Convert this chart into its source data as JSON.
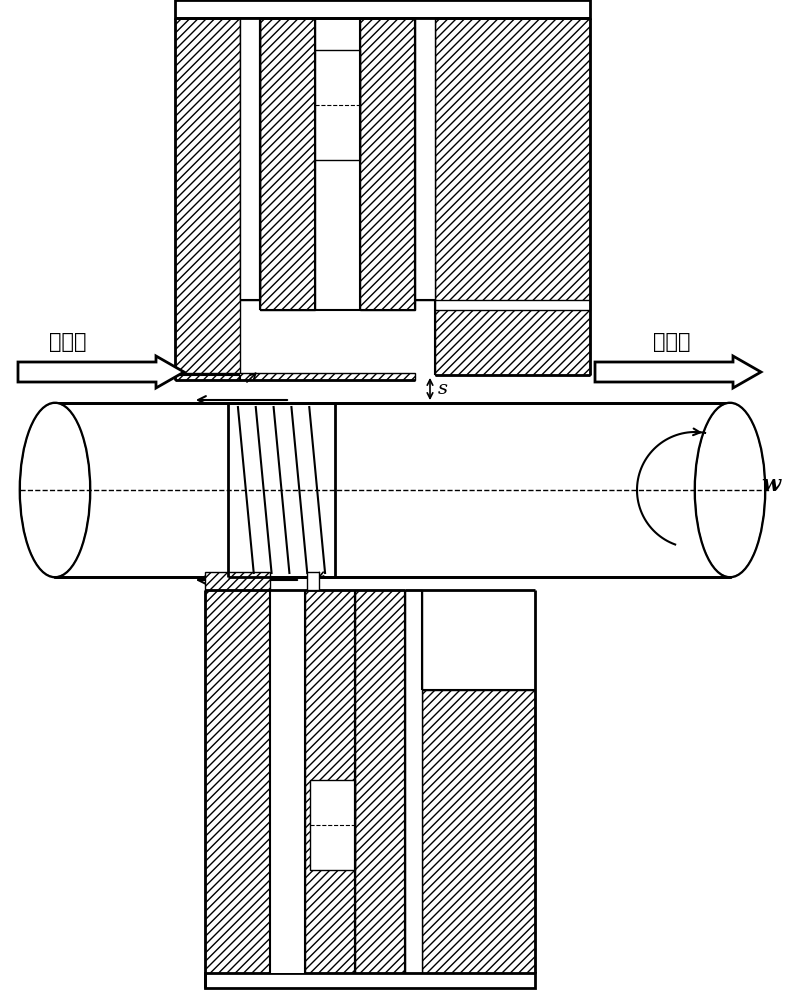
{
  "bg_color": "#ffffff",
  "lc": "#000000",
  "fig_width": 7.92,
  "fig_height": 10.0,
  "label_gaoya": "高压侧",
  "label_diya": "低压侧",
  "label_s": "s",
  "label_w": "w"
}
